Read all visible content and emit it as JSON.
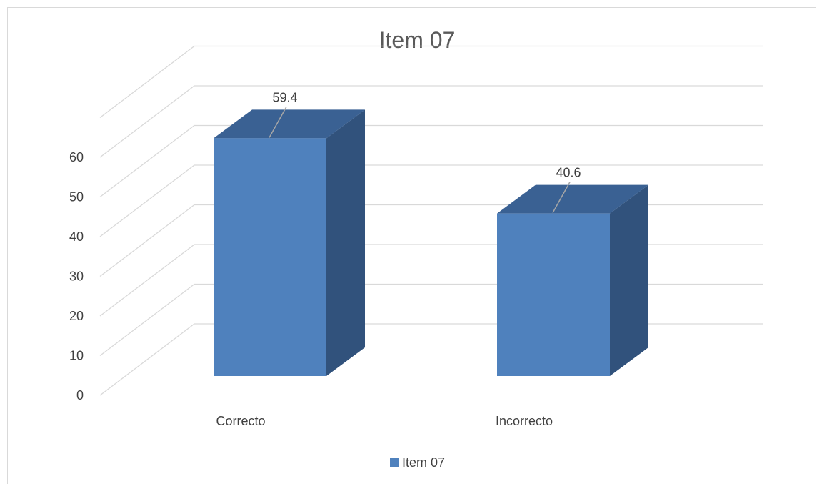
{
  "chart_data": {
    "type": "bar",
    "style": "3d-column",
    "title": "Item 07",
    "categories": [
      "Correcto",
      "Incorrecto"
    ],
    "series": [
      {
        "name": "Item 07",
        "values": [
          59.4,
          40.6
        ],
        "color": "#4f81bd"
      }
    ],
    "data_labels": [
      "59.4",
      "40.6"
    ],
    "ylim": [
      0,
      60
    ],
    "yticks": [
      0,
      10,
      20,
      30,
      40,
      50,
      60
    ],
    "grid": true,
    "legend": "bottom",
    "colors": {
      "bar_front": "#4f81bd",
      "bar_top": "#3a6193",
      "bar_side": "#31527c",
      "grid": "#d9d9d9",
      "text": "#404040"
    }
  }
}
